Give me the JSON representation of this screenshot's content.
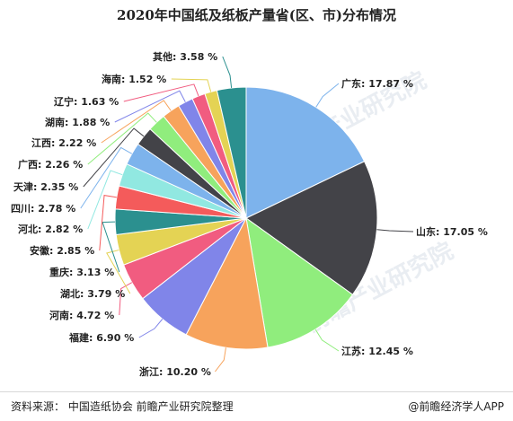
{
  "chart_data": {
    "type": "pie",
    "title": "2020年中国纸及纸板产量省(区、市)分布情况",
    "slices": [
      {
        "label": "广东: 17.87 %",
        "value": 17.87,
        "color": "#7db3ec"
      },
      {
        "label": "山东: 17.05 %",
        "value": 17.05,
        "color": "#434348"
      },
      {
        "label": "江苏: 12.45 %",
        "value": 12.45,
        "color": "#90ed7d"
      },
      {
        "label": "浙江: 10.20 %",
        "value": 10.2,
        "color": "#f7a35c"
      },
      {
        "label": "福建: 6.90 %",
        "value": 6.9,
        "color": "#8085e9"
      },
      {
        "label": "河南: 4.72 %",
        "value": 4.72,
        "color": "#f15c80"
      },
      {
        "label": "湖北: 3.79 %",
        "value": 3.79,
        "color": "#e4d354"
      },
      {
        "label": "重庆: 3.13 %",
        "value": 3.13,
        "color": "#2b908f"
      },
      {
        "label": "安徽: 2.85 %",
        "value": 2.85,
        "color": "#f45b5b"
      },
      {
        "label": "河北: 2.82 %",
        "value": 2.82,
        "color": "#91e8e1"
      },
      {
        "label": "四川: 2.78 %",
        "value": 2.78,
        "color": "#7db3ec"
      },
      {
        "label": "天津: 2.35 %",
        "value": 2.35,
        "color": "#434348"
      },
      {
        "label": "广西: 2.26 %",
        "value": 2.26,
        "color": "#90ed7d"
      },
      {
        "label": "江西: 2.22 %",
        "value": 2.22,
        "color": "#f7a35c"
      },
      {
        "label": "湖南: 1.88 %",
        "value": 1.88,
        "color": "#8085e9"
      },
      {
        "label": "辽宁: 1.63 %",
        "value": 1.63,
        "color": "#f15c80"
      },
      {
        "label": "海南: 1.52 %",
        "value": 1.52,
        "color": "#e4d354"
      },
      {
        "label": "其他: 3.58 %",
        "value": 3.58,
        "color": "#2b908f"
      }
    ]
  },
  "footer": {
    "source": "资料来源：  中国造纸协会 前瞻产业研究院整理",
    "brand": "@前瞻经济学人APP"
  },
  "watermark": "前瞻产业研究院"
}
